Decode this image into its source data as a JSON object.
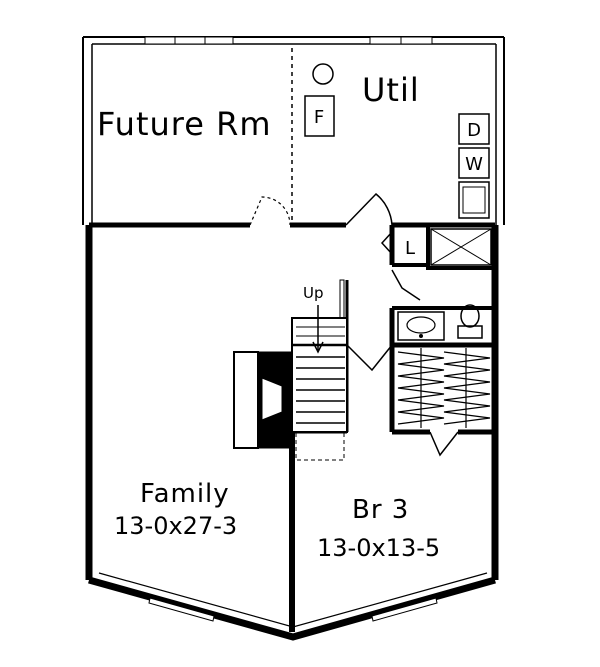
{
  "rooms": {
    "future_room": {
      "label": "Future Rm"
    },
    "utility": {
      "label": "Util"
    },
    "family": {
      "label": "Family",
      "dims": "13-0x27-3"
    },
    "bedroom3": {
      "label": "Br 3",
      "dims": "13-0x13-5"
    }
  },
  "fixtures": {
    "furnace": "F",
    "dryer": "D",
    "washer": "W",
    "linen": "L",
    "stairs": "Up"
  }
}
